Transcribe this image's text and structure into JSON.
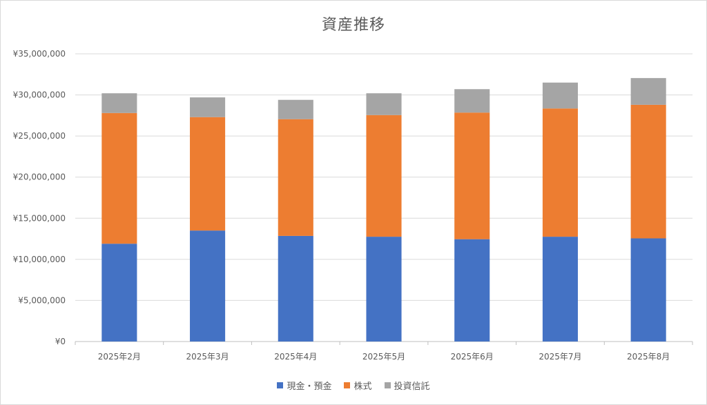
{
  "chart_data": {
    "type": "bar",
    "stacked": true,
    "title": "資産推移",
    "categories": [
      "2025年2月",
      "2025年3月",
      "2025年4月",
      "2025年5月",
      "2025年6月",
      "2025年7月",
      "2025年8月"
    ],
    "series": [
      {
        "name": "現金・預金",
        "color": "#4472C4",
        "values": [
          11900000,
          13500000,
          12850000,
          12750000,
          12450000,
          12750000,
          12550000
        ]
      },
      {
        "name": "株式",
        "color": "#ED7D31",
        "values": [
          15900000,
          13800000,
          14200000,
          14800000,
          15400000,
          15600000,
          16250000
        ]
      },
      {
        "name": "投資信託",
        "color": "#A5A5A5",
        "values": [
          2400000,
          2400000,
          2350000,
          2650000,
          2850000,
          3150000,
          3250000
        ]
      }
    ],
    "ylim": [
      0,
      35000000
    ],
    "yticks": [
      "¥0",
      "¥5,000,000",
      "¥10,000,000",
      "¥15,000,000",
      "¥20,000,000",
      "¥25,000,000",
      "¥30,000,000",
      "¥35,000,000"
    ],
    "grid": true,
    "legend_position": "bottom"
  }
}
